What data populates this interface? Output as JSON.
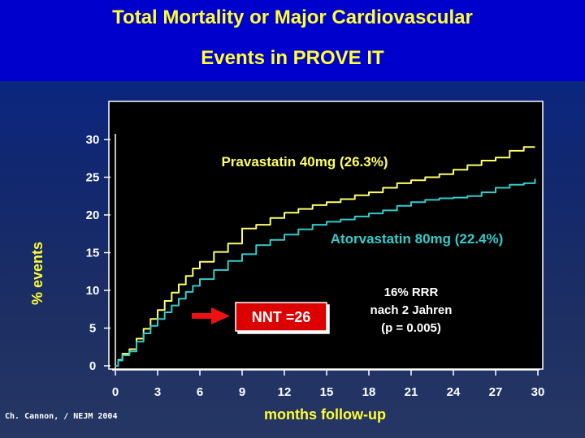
{
  "title": {
    "line1": "Total Mortality or Major Cardiovascular",
    "line2": "Events in PROVE IT"
  },
  "credit": "Ch. Cannon, / NEJM 2004",
  "colors": {
    "title_bar": "#0000cc",
    "title_text": "#ffff33",
    "plot_bg": "#000000",
    "pravastatin": "#ffff66",
    "atorvastatin": "#33cccc",
    "nnt_box": "#dd0000",
    "arrow": "#ee1111"
  },
  "chart_data": {
    "type": "line",
    "xlabel": "months follow-up",
    "ylabel": "% events",
    "xlim": [
      0,
      30
    ],
    "ylim": [
      0,
      30
    ],
    "xticks": [
      "0",
      "3",
      "6",
      "9",
      "12",
      "15",
      "18",
      "21",
      "24",
      "27",
      "30"
    ],
    "yticks": [
      "0",
      "5",
      "10",
      "15",
      "20",
      "25",
      "30"
    ],
    "grid": false,
    "series": [
      {
        "name": "Pravastatin 40mg (26.3%)",
        "color": "#ffff66",
        "x": [
          0,
          0.2,
          0.5,
          1,
          1.5,
          2,
          2.5,
          3,
          3.5,
          4,
          4.5,
          5,
          5.5,
          6,
          7,
          8,
          9,
          10,
          11,
          12,
          13,
          14,
          15,
          16,
          17,
          18,
          19,
          20,
          21,
          22,
          23,
          24,
          25,
          26,
          27,
          28,
          29,
          29.8
        ],
        "y": [
          0,
          0.8,
          1.6,
          2.2,
          3.6,
          4.9,
          6.2,
          7.4,
          8.6,
          9.7,
          10.8,
          11.9,
          12.9,
          13.8,
          15.1,
          16.2,
          18.2,
          18.7,
          19.6,
          20.3,
          20.8,
          21.3,
          21.7,
          22.1,
          22.6,
          23.0,
          23.6,
          24.2,
          24.6,
          25.0,
          25.4,
          26.0,
          26.6,
          27.2,
          27.6,
          28.5,
          29.0,
          29.0
        ]
      },
      {
        "name": "Atorvastatin 80mg (22.4%)",
        "color": "#33cccc",
        "x": [
          0,
          0.2,
          0.5,
          1,
          1.5,
          2,
          2.5,
          3,
          3.5,
          4,
          4.5,
          5,
          5.5,
          6,
          7,
          8,
          9,
          10,
          11,
          12,
          13,
          14,
          15,
          16,
          17,
          18,
          19,
          20,
          21,
          22,
          23,
          24,
          25,
          26,
          27,
          28,
          29,
          29.8
        ],
        "y": [
          0,
          0.7,
          1.4,
          1.9,
          3.2,
          4.3,
          5.3,
          6.2,
          7.1,
          8.0,
          8.9,
          9.8,
          10.6,
          11.5,
          12.7,
          13.9,
          14.8,
          16.0,
          16.7,
          17.4,
          18.1,
          18.7,
          19.1,
          19.4,
          19.8,
          20.2,
          20.6,
          21.2,
          21.7,
          22.0,
          22.2,
          22.3,
          22.5,
          23.0,
          23.6,
          24.0,
          24.2,
          24.8
        ]
      }
    ],
    "annotations": {
      "stat_lines": [
        "16% RRR",
        "nach 2 Jahren",
        "(p = 0.005)"
      ],
      "nnt": "NNT =26"
    }
  }
}
